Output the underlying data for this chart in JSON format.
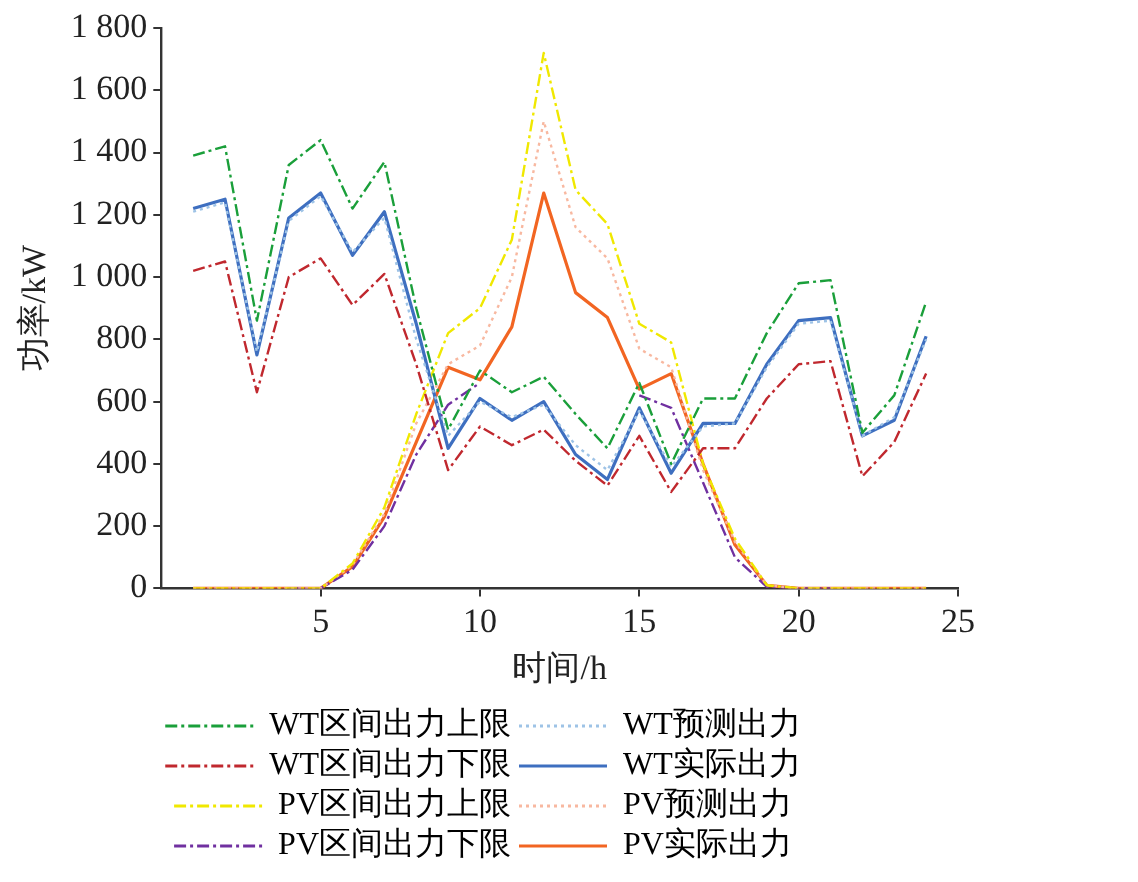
{
  "chart_data": {
    "type": "line",
    "xlabel": "时间/h",
    "ylabel": "功率/kW",
    "x": [
      1,
      2,
      3,
      4,
      5,
      6,
      7,
      8,
      9,
      10,
      11,
      12,
      13,
      14,
      15,
      16,
      17,
      18,
      19,
      20,
      21,
      22,
      23,
      24
    ],
    "xlim": [
      0,
      25
    ],
    "xticks": [
      5,
      10,
      15,
      20,
      25
    ],
    "ylim": [
      0,
      1800
    ],
    "yticks": [
      0,
      200,
      400,
      600,
      800,
      {
        "value": 1000,
        "label": "1 000"
      },
      {
        "value": 1200,
        "label": "1 200"
      },
      {
        "value": 1400,
        "label": "1 400"
      },
      {
        "value": 1600,
        "label": "1 600"
      },
      {
        "value": 1800,
        "label": "1 800"
      }
    ],
    "grid": false,
    "legend": "bottom",
    "marker": "none",
    "series": [
      {
        "name": "WT区间出力上限",
        "color": "#1a9f3a",
        "line_style": "dashed",
        "values": [
          1390,
          1420,
          860,
          1360,
          1440,
          1220,
          1370,
          900,
          510,
          700,
          630,
          680,
          560,
          450,
          660,
          400,
          610,
          610,
          820,
          980,
          990,
          500,
          620,
          920
        ]
      },
      {
        "name": "WT预测出力",
        "color": "#9ec3e6",
        "line_style": "dotted",
        "values": [
          1210,
          1240,
          760,
          1180,
          1260,
          1080,
          1190,
          800,
          490,
          600,
          550,
          590,
          460,
          380,
          570,
          390,
          520,
          530,
          710,
          850,
          860,
          490,
          550,
          800
        ]
      },
      {
        "name": "WT区间出力下限",
        "color": "#c0282e",
        "line_style": "dashed",
        "values": [
          1020,
          1050,
          630,
          1000,
          1060,
          910,
          1010,
          720,
          380,
          520,
          460,
          510,
          410,
          330,
          490,
          310,
          450,
          450,
          610,
          720,
          730,
          360,
          470,
          690
        ]
      },
      {
        "name": "WT实际出力",
        "color": "#3e6fc0",
        "line_style": "solid",
        "values": [
          1220,
          1250,
          750,
          1190,
          1270,
          1070,
          1210,
          850,
          450,
          610,
          540,
          600,
          430,
          350,
          580,
          370,
          530,
          530,
          720,
          860,
          870,
          490,
          540,
          810
        ]
      },
      {
        "name": "PV区间出力上限",
        "color": "#f0e800",
        "line_style": "dashed",
        "values": [
          0,
          0,
          0,
          0,
          0,
          80,
          260,
          560,
          820,
          900,
          1120,
          1720,
          1280,
          1170,
          850,
          790,
          400,
          160,
          10,
          0,
          0,
          0,
          0,
          0
        ]
      },
      {
        "name": "PV预测出力",
        "color": "#f8b8a0",
        "line_style": "dotted",
        "values": [
          0,
          0,
          0,
          0,
          0,
          75,
          240,
          530,
          720,
          780,
          1000,
          1500,
          1160,
          1060,
          770,
          710,
          380,
          150,
          10,
          0,
          0,
          0,
          0,
          0
        ]
      },
      {
        "name": "PV区间出力下限",
        "color": "#7030a0",
        "line_style": "dashed",
        "values": [
          null,
          null,
          null,
          0,
          0,
          60,
          200,
          430,
          590,
          660,
          null,
          null,
          null,
          null,
          620,
          580,
          340,
          100,
          5,
          0,
          0,
          null,
          null,
          null
        ]
      },
      {
        "name": "PV实际出力",
        "color": "#f26522",
        "line_style": "solid",
        "values": [
          0,
          0,
          0,
          0,
          0,
          70,
          230,
          470,
          710,
          670,
          840,
          1270,
          950,
          870,
          640,
          690,
          400,
          140,
          10,
          0,
          0,
          0,
          0,
          0
        ]
      }
    ]
  }
}
